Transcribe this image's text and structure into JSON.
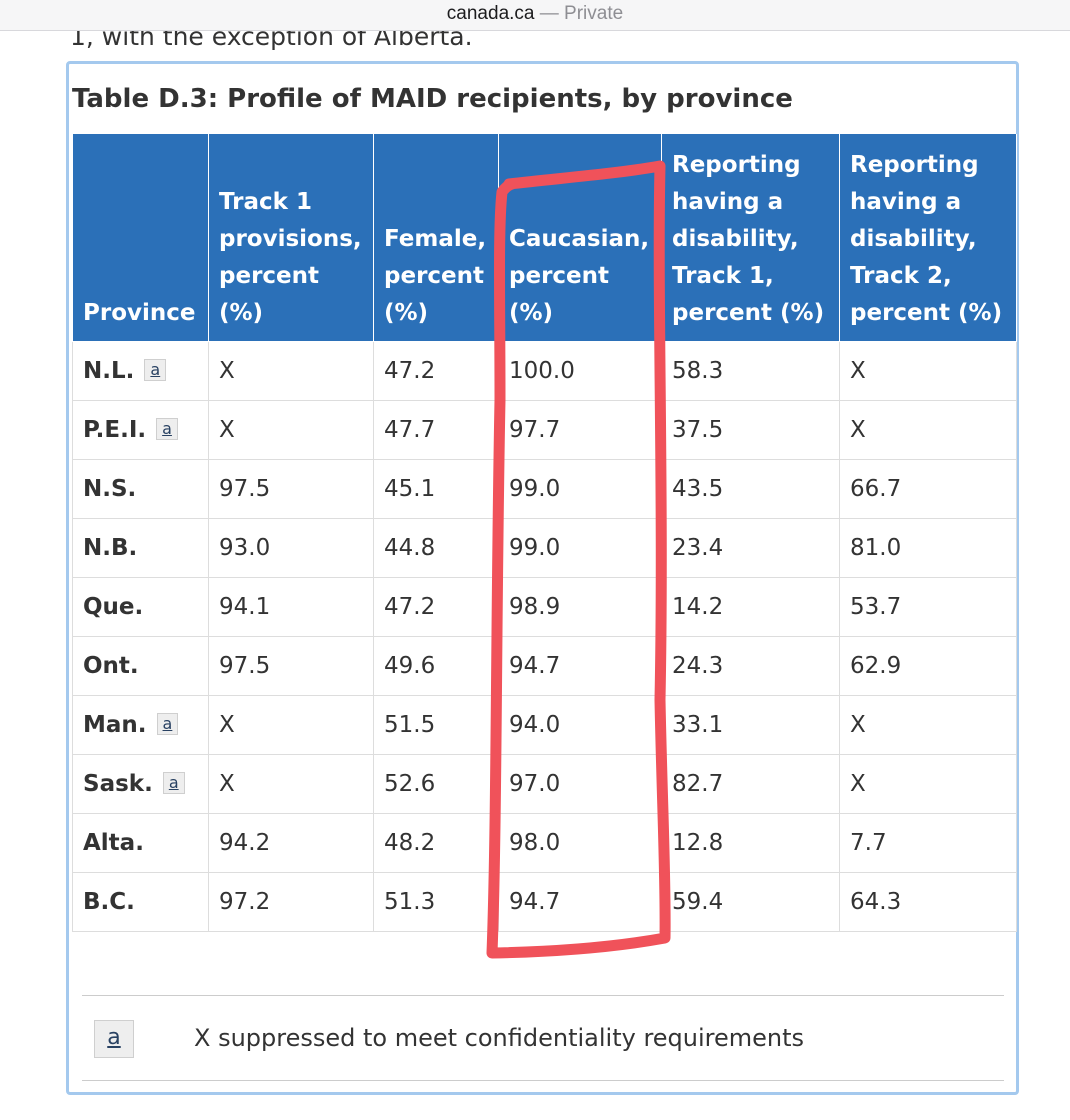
{
  "browser": {
    "domain": "canada.ca",
    "separator": "—",
    "mode": "Private"
  },
  "page": {
    "cut_text": "1, with the exception of Alberta."
  },
  "table": {
    "caption": "Table D.3: Profile of MAID recipients, by province",
    "headers": [
      "Province",
      "Track 1 provisions, percent (%)",
      "Female, percent (%)",
      "Caucasian, percent (%)",
      "Reporting having a disability, Track 1, percent (%)",
      "Reporting having a disability, Track 2, percent (%)"
    ],
    "rows": [
      {
        "province": "N.L.",
        "footnote": "a",
        "track1": "X",
        "female": "47.2",
        "caucasian": "100.0",
        "dis_t1": "58.3",
        "dis_t2": "X"
      },
      {
        "province": "P.E.I.",
        "footnote": "a",
        "track1": "X",
        "female": "47.7",
        "caucasian": "97.7",
        "dis_t1": "37.5",
        "dis_t2": "X"
      },
      {
        "province": "N.S.",
        "footnote": "",
        "track1": "97.5",
        "female": "45.1",
        "caucasian": "99.0",
        "dis_t1": "43.5",
        "dis_t2": "66.7"
      },
      {
        "province": "N.B.",
        "footnote": "",
        "track1": "93.0",
        "female": "44.8",
        "caucasian": "99.0",
        "dis_t1": "23.4",
        "dis_t2": "81.0"
      },
      {
        "province": "Que.",
        "footnote": "",
        "track1": "94.1",
        "female": "47.2",
        "caucasian": "98.9",
        "dis_t1": "14.2",
        "dis_t2": "53.7"
      },
      {
        "province": "Ont.",
        "footnote": "",
        "track1": "97.5",
        "female": "49.6",
        "caucasian": "94.7",
        "dis_t1": "24.3",
        "dis_t2": "62.9"
      },
      {
        "province": "Man.",
        "footnote": "a",
        "track1": "X",
        "female": "51.5",
        "caucasian": "94.0",
        "dis_t1": "33.1",
        "dis_t2": "X"
      },
      {
        "province": "Sask.",
        "footnote": "a",
        "track1": "X",
        "female": "52.6",
        "caucasian": "97.0",
        "dis_t1": "82.7",
        "dis_t2": "X"
      },
      {
        "province": "Alta.",
        "footnote": "",
        "track1": "94.2",
        "female": "48.2",
        "caucasian": "98.0",
        "dis_t1": "12.8",
        "dis_t2": "7.7"
      },
      {
        "province": "B.C.",
        "footnote": "",
        "track1": "97.2",
        "female": "51.3",
        "caucasian": "94.7",
        "dis_t1": "59.4",
        "dis_t2": "64.3"
      }
    ],
    "notes": [
      {
        "key": "a",
        "text": "X suppressed to meet confidentiality requirements"
      }
    ]
  },
  "colors": {
    "header_bg": "#2b70b8",
    "panel_border": "#a4c9ee",
    "highlight_stroke": "#f0525a"
  }
}
